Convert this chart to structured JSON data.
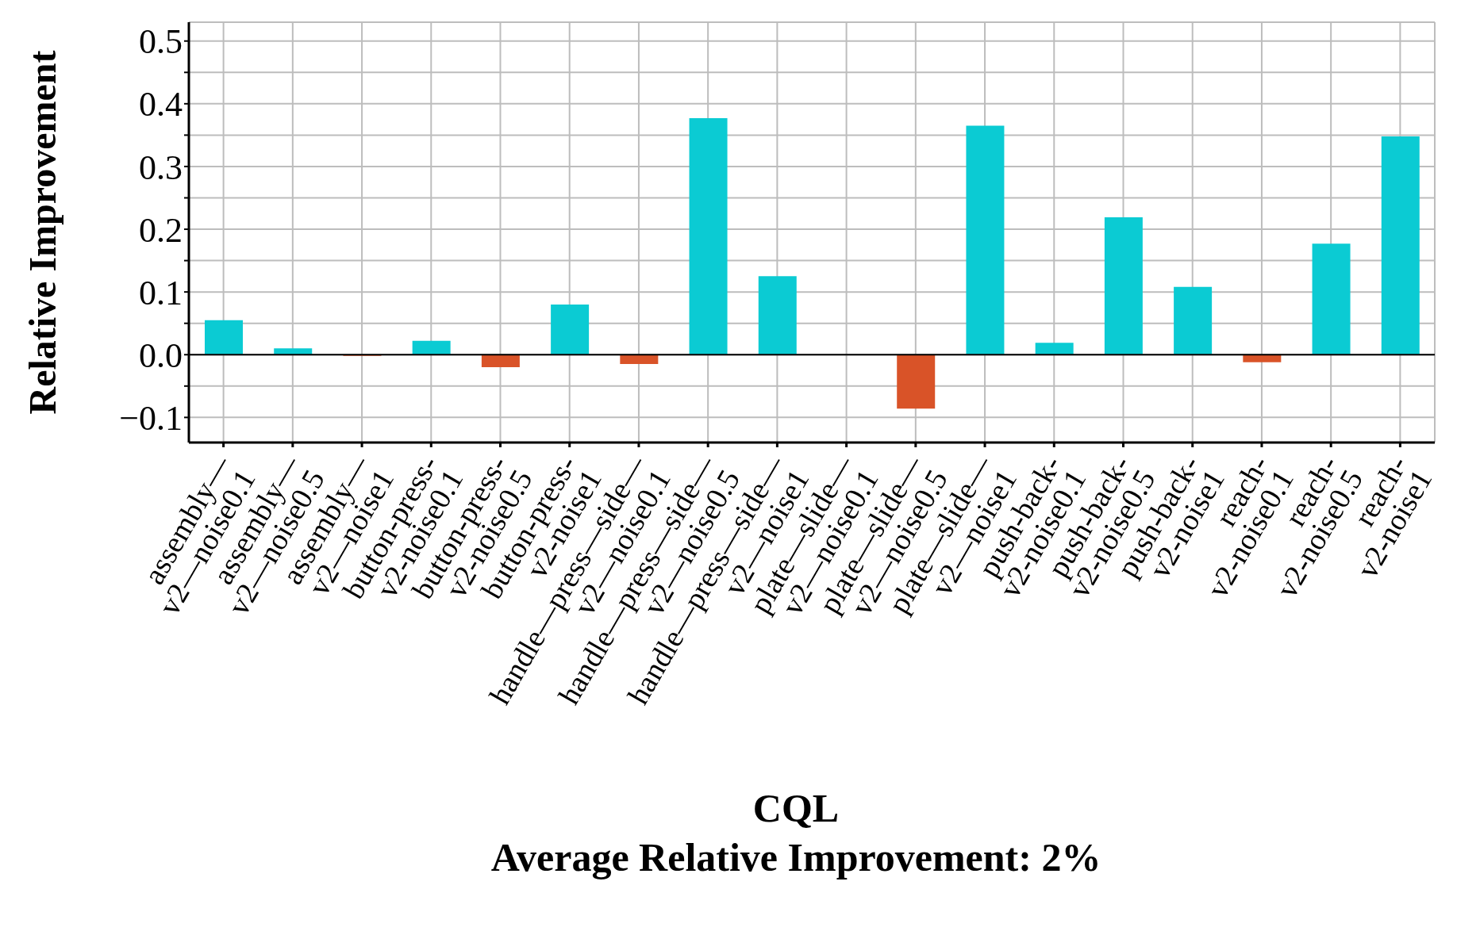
{
  "chart_data": {
    "type": "bar",
    "ylabel": "Relative Improvement",
    "xlabel": "CQL",
    "annotations": [
      "Average Relative Improvement: 2%"
    ],
    "categories": [
      "assembly—\nv2—noise0.1",
      "assembly—\nv2—noise0.5",
      "assembly—\nv2—noise1",
      "button-press-\nv2-noise0.1",
      "button-press-\nv2-noise0.5",
      "button-press-\nv2-noise1",
      "handle—press—side—\nv2—noise0.1",
      "handle—press—side—\nv2—noise0.5",
      "handle—press—side—\nv2—noise1",
      "plate—slide—\nv2—noise0.1",
      "plate—slide—\nv2—noise0.5",
      "plate—slide—\nv2—noise1",
      "push-back-\nv2-noise0.1",
      "push-back-\nv2-noise0.5",
      "push-back-\nv2-noise1",
      "reach-\nv2-noise0.1",
      "reach-\nv2-noise0.5",
      "reach-\nv2-noise1"
    ],
    "values": [
      0.055,
      0.01,
      -0.002,
      0.022,
      -0.02,
      0.08,
      -0.015,
      0.377,
      0.125,
      0,
      -0.086,
      0.365,
      0.019,
      0.219,
      0.108,
      -0.012,
      0.177,
      0.348
    ],
    "colors": [
      "#0bcbd3",
      "#0bcbd3",
      "#d95328",
      "#0bcbd3",
      "#d95328",
      "#0bcbd3",
      "#d95328",
      "#0bcbd3",
      "#0bcbd3",
      "#0bcbd3",
      "#d95328",
      "#0bcbd3",
      "#0bcbd3",
      "#0bcbd3",
      "#0bcbd3",
      "#d95328",
      "#0bcbd3",
      "#0bcbd3"
    ],
    "ylim": [
      -0.14,
      0.53
    ],
    "yticks": [
      -0.1,
      {
        "value": -0.05,
        "label": null
      },
      {
        "value": 0.0,
        "label": "0.0"
      },
      {
        "value": 0.05,
        "label": null
      },
      0.1,
      {
        "value": 0.15,
        "label": null
      },
      0.2,
      {
        "value": 0.25,
        "label": null
      },
      0.3,
      {
        "value": 0.35,
        "label": null
      },
      0.4,
      {
        "value": 0.45,
        "label": null
      },
      0.5
    ],
    "ref_lines": [
      {
        "axis": "y",
        "value": 0,
        "color": "#000000"
      }
    ],
    "grid": true
  }
}
